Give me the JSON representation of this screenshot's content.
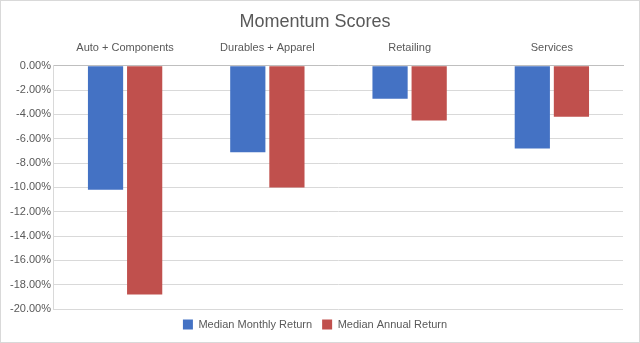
{
  "chart_data": {
    "type": "bar",
    "title": "Momentum Scores",
    "categories": [
      "Auto + Components",
      "Durables + Apparel",
      "Retailing",
      "Services"
    ],
    "series": [
      {
        "name": "Median Monthly Return",
        "color": "#4472c4",
        "values": [
          -10.2,
          -7.1,
          -2.7,
          -6.8
        ]
      },
      {
        "name": "Median Annual Return",
        "color": "#c0504d",
        "values": [
          -18.8,
          -10.0,
          -4.5,
          -4.2
        ]
      }
    ],
    "ylim": [
      -20,
      0
    ],
    "yticks": [
      {
        "value": 0,
        "label": "0.00%"
      },
      {
        "value": -2,
        "label": "-2.00%"
      },
      {
        "value": -4,
        "label": "-4.00%"
      },
      {
        "value": -6,
        "label": "-6.00%"
      },
      {
        "value": -8,
        "label": "-8.00%"
      },
      {
        "value": -10,
        "label": "-10.00%"
      },
      {
        "value": -12,
        "label": "-12.00%"
      },
      {
        "value": -14,
        "label": "-14.00%"
      },
      {
        "value": -16,
        "label": "-16.00%"
      },
      {
        "value": -18,
        "label": "-18.00%"
      },
      {
        "value": -20,
        "label": "-20.00%"
      }
    ],
    "grid": true,
    "legend": "bottom"
  }
}
